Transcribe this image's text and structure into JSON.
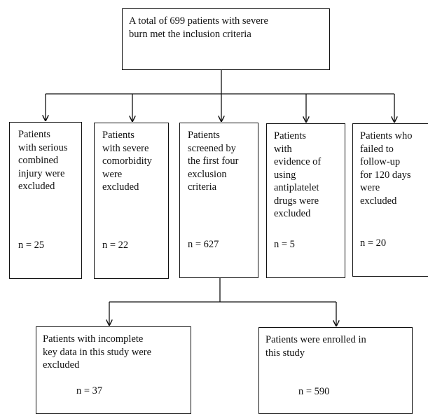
{
  "flowchart": {
    "top": "A total of 699 patients with severe burn met the inclusion criteria",
    "top_lines": [
      "A total of 699 patients with severe",
      "burn met the inclusion criteria"
    ],
    "exclusions": [
      {
        "lines": [
          "Patients",
          "with serious",
          "combined",
          "injury were",
          "excluded"
        ],
        "n": "n = 25"
      },
      {
        "lines": [
          "Patients",
          "with severe",
          "comorbidity",
          "were",
          "excluded"
        ],
        "n": "n = 22"
      },
      {
        "lines": [
          "Patients",
          "screened by",
          "the first four",
          "exclusion",
          "criteria"
        ],
        "n": "n = 627"
      },
      {
        "lines": [
          "Patients",
          "with",
          "evidence of",
          "using",
          "antiplatelet",
          "drugs were",
          "excluded"
        ],
        "n": "n = 5"
      },
      {
        "lines": [
          "Patients who",
          "failed to",
          "follow-up",
          "for 120 days",
          "were",
          "excluded"
        ],
        "n": "n = 20"
      }
    ],
    "bottom_left": {
      "lines": [
        "Patients with incomplete",
        "key data in this study were",
        "excluded"
      ],
      "n": "n = 37"
    },
    "bottom_right": {
      "lines": [
        "Patients were enrolled in",
        "this study"
      ],
      "n": "n = 590"
    }
  }
}
